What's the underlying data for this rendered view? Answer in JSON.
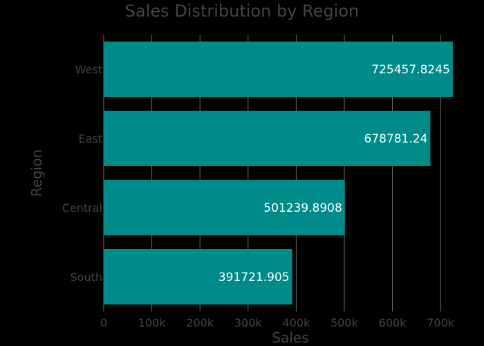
{
  "chart_data": {
    "type": "bar",
    "orientation": "horizontal",
    "title": "Sales Distribution by Region",
    "xlabel": "Sales",
    "ylabel": "Region",
    "categories": [
      "West",
      "East",
      "Central",
      "South"
    ],
    "values": [
      725457.8245,
      678781.24,
      501239.8908,
      391721.905
    ],
    "value_labels": [
      "725457.8245",
      "678781.24",
      "501239.8908",
      "391721.905"
    ],
    "xlim": [
      0,
      740000
    ],
    "xticks": [
      0,
      100000,
      200000,
      300000,
      400000,
      500000,
      600000,
      700000
    ],
    "xtick_labels": [
      "0",
      "100k",
      "200k",
      "300k",
      "400k",
      "500k",
      "600k",
      "700k"
    ],
    "grid": true,
    "colors": {
      "bar": "#008b8b",
      "background": "#000000",
      "text": "#444444",
      "grid": "#6f6f6f",
      "label": "#ffffff"
    }
  }
}
